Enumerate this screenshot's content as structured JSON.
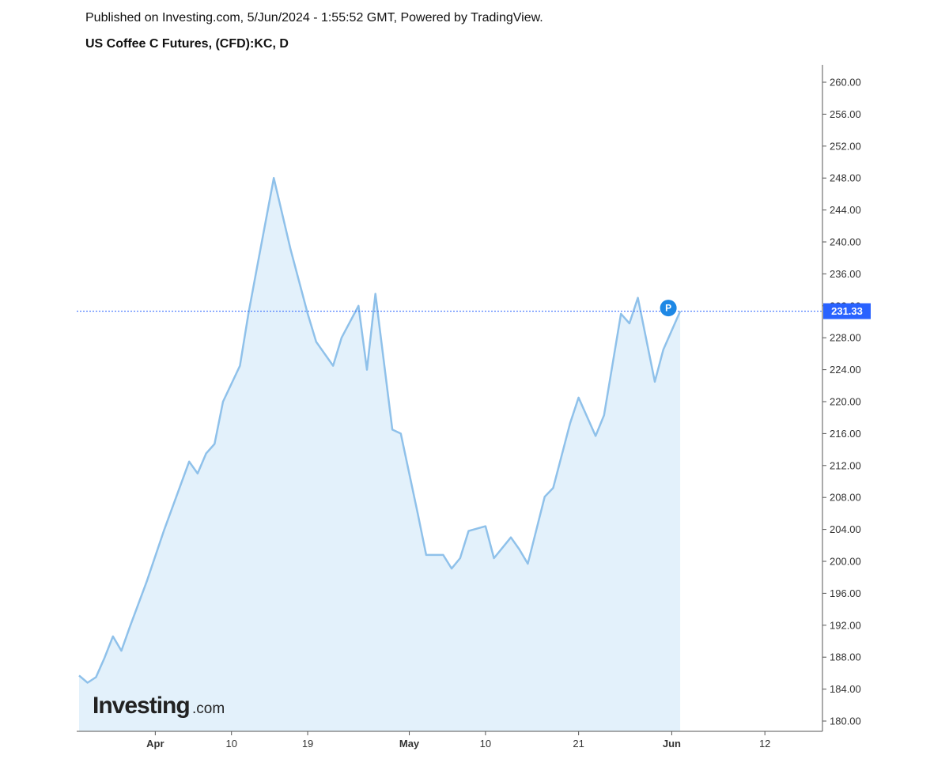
{
  "header": {
    "published": "Published on Investing.com, 5/Jun/2024 - 1:55:52 GMT, Powered by TradingView.",
    "symbol_title": "US Coffee C Futures, (CFD):KC, D"
  },
  "logo": {
    "main": "Investing",
    "suffix": ".com"
  },
  "colors": {
    "line": "#8fc1ea",
    "area": "#e3f1fb",
    "price_line": "#2962ff",
    "price_tag": "#2962ff",
    "marker": "#1e88e5"
  },
  "chart_data": {
    "type": "area",
    "title": "US Coffee C Futures, (CFD):KC, D",
    "xlabel": "",
    "ylabel": "",
    "ylim": [
      178.5,
      262
    ],
    "y_ticks": [
      "260.00",
      "256.00",
      "252.00",
      "248.00",
      "244.00",
      "240.00",
      "236.00",
      "232.00",
      "228.00",
      "224.00",
      "220.00",
      "216.00",
      "212.00",
      "208.00",
      "204.00",
      "200.00",
      "196.00",
      "192.00",
      "188.00",
      "184.00",
      "180.00"
    ],
    "x_ticks": [
      {
        "label": "Apr",
        "date": "2024-04-01",
        "bold": true
      },
      {
        "label": "10",
        "date": "2024-04-10",
        "bold": false
      },
      {
        "label": "19",
        "date": "2024-04-19",
        "bold": false
      },
      {
        "label": "May",
        "date": "2024-05-01",
        "bold": true
      },
      {
        "label": "10",
        "date": "2024-05-10",
        "bold": false
      },
      {
        "label": "21",
        "date": "2024-05-21",
        "bold": false
      },
      {
        "label": "Jun",
        "date": "2024-06-01",
        "bold": true
      },
      {
        "label": "12",
        "date": "2024-06-12",
        "bold": false
      }
    ],
    "x_range": [
      "2024-03-23",
      "2024-06-16"
    ],
    "current_price": 231.33,
    "current_price_label": "231.33",
    "marker_label": "P",
    "series": [
      {
        "points": [
          [
            "2024-03-23",
            185.7
          ],
          [
            "2024-03-24",
            184.8
          ],
          [
            "2024-03-25",
            185.5
          ],
          [
            "2024-03-26",
            187.9
          ],
          [
            "2024-03-27",
            190.6
          ],
          [
            "2024-03-28",
            188.8
          ],
          [
            "2024-03-29",
            191.8
          ],
          [
            "2024-03-31",
            197.5
          ],
          [
            "2024-04-02",
            203.8
          ],
          [
            "2024-04-03",
            206.7
          ],
          [
            "2024-04-05",
            212.5
          ],
          [
            "2024-04-06",
            211.0
          ],
          [
            "2024-04-07",
            213.5
          ],
          [
            "2024-04-08",
            214.7
          ],
          [
            "2024-04-09",
            220.0
          ],
          [
            "2024-04-11",
            224.5
          ],
          [
            "2024-04-12",
            231.0
          ],
          [
            "2024-04-13",
            236.7
          ],
          [
            "2024-04-15",
            248.0
          ],
          [
            "2024-04-17",
            239.0
          ],
          [
            "2024-04-19",
            231.0
          ],
          [
            "2024-04-20",
            227.5
          ],
          [
            "2024-04-22",
            224.5
          ],
          [
            "2024-04-23",
            228.0
          ],
          [
            "2024-04-25",
            232.0
          ],
          [
            "2024-04-26",
            224.0
          ],
          [
            "2024-04-27",
            233.5
          ],
          [
            "2024-04-29",
            216.5
          ],
          [
            "2024-04-30",
            216.0
          ],
          [
            "2024-05-02",
            206.0
          ],
          [
            "2024-05-03",
            200.8
          ],
          [
            "2024-05-05",
            200.8
          ],
          [
            "2024-05-06",
            199.1
          ],
          [
            "2024-05-07",
            200.4
          ],
          [
            "2024-05-08",
            203.8
          ],
          [
            "2024-05-10",
            204.4
          ],
          [
            "2024-05-11",
            200.4
          ],
          [
            "2024-05-13",
            203.0
          ],
          [
            "2024-05-14",
            201.5
          ],
          [
            "2024-05-15",
            199.7
          ],
          [
            "2024-05-17",
            208.1
          ],
          [
            "2024-05-18",
            209.2
          ],
          [
            "2024-05-20",
            217.3
          ],
          [
            "2024-05-21",
            220.5
          ],
          [
            "2024-05-23",
            215.7
          ],
          [
            "2024-05-24",
            218.3
          ],
          [
            "2024-05-26",
            231.0
          ],
          [
            "2024-05-27",
            229.8
          ],
          [
            "2024-05-28",
            233.0
          ],
          [
            "2024-05-30",
            222.5
          ],
          [
            "2024-05-31",
            226.5
          ],
          [
            "2024-06-02",
            231.33
          ]
        ]
      }
    ]
  }
}
